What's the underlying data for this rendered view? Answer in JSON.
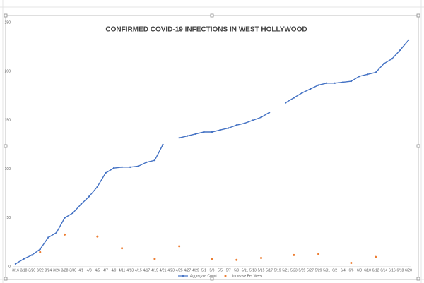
{
  "chart_data": {
    "type": "line",
    "title": "CONFIRMED COVID-19 INFECTIONS IN WEST HOLLYWOOD",
    "categories": [
      "3/16",
      "3/18",
      "3/20",
      "3/22",
      "3/24",
      "3/26",
      "3/28",
      "3/30",
      "4/1",
      "4/3",
      "4/5",
      "4/7",
      "4/9",
      "4/11",
      "4/13",
      "4/15",
      "4/17",
      "4/19",
      "4/21",
      "4/23",
      "4/25",
      "4/27",
      "4/29",
      "5/1",
      "5/3",
      "5/5",
      "5/7",
      "5/9",
      "5/11",
      "5/13",
      "5/15",
      "5/17",
      "5/19",
      "5/21",
      "5/23",
      "5/25",
      "5/27",
      "5/29",
      "5/31",
      "6/2",
      "6/4",
      "6/6",
      "6/8",
      "6/10",
      "6/12",
      "6/14",
      "6/16",
      "6/18",
      "6/20"
    ],
    "series": [
      {
        "name": "Aggregate Count",
        "color": "#4472c4",
        "style": "line",
        "values": [
          3,
          8,
          12,
          18,
          30,
          35,
          50,
          55,
          64,
          72,
          82,
          96,
          101,
          102,
          102,
          103,
          107,
          109,
          125,
          null,
          132,
          134,
          136,
          138,
          138,
          140,
          142,
          145,
          147,
          150,
          153,
          158,
          null,
          168,
          173,
          178,
          182,
          186,
          188,
          188,
          189,
          190,
          195,
          197,
          199,
          208,
          213,
          222,
          232
        ]
      },
      {
        "name": "Increase Per Week",
        "color": "#ed7d31",
        "style": "markers",
        "values": [
          null,
          null,
          null,
          15,
          null,
          null,
          33,
          null,
          null,
          null,
          31,
          null,
          null,
          19,
          null,
          null,
          null,
          8,
          null,
          null,
          21,
          null,
          null,
          null,
          8,
          null,
          null,
          7,
          null,
          null,
          9,
          null,
          null,
          null,
          12,
          null,
          null,
          13,
          null,
          null,
          null,
          4,
          null,
          null,
          10,
          null,
          null,
          null,
          null
        ]
      }
    ],
    "ylim": [
      0,
      250
    ],
    "yticks": [
      0,
      50,
      100,
      150,
      200,
      250
    ],
    "grid": false,
    "legend": "bottom"
  }
}
